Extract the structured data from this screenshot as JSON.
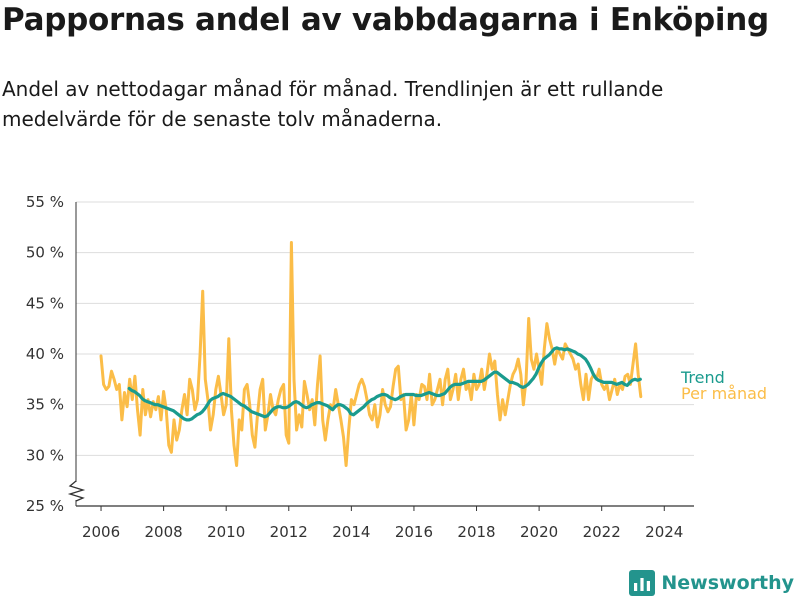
{
  "title": "Pappornas andel av vabbdagarna i Enköping",
  "subtitle": "Andel av nettodagar månad för månad. Trendlinjen är ett rullande medelvärde för de senaste tolv månaderna.",
  "brand": {
    "name": "Newsworthy",
    "color": "#23948d"
  },
  "colors": {
    "monthly": "#FBBD48",
    "trend": "#1A9B8E",
    "grid": "#dddddd",
    "axis": "#333333"
  },
  "chart_data": {
    "type": "line",
    "title": "Pappornas andel av vabbdagarna i Enköping",
    "ylabel": "",
    "xlabel": "",
    "ylim": [
      25,
      55
    ],
    "xlim": [
      2005.2,
      2024.95
    ],
    "y_axis_break": true,
    "yticks": [
      25,
      30,
      35,
      40,
      45,
      50,
      55
    ],
    "ytick_labels": [
      "25 %",
      "30 %",
      "35 %",
      "40 %",
      "45 %",
      "50 %",
      "55 %"
    ],
    "xticks": [
      2006,
      2008,
      2010,
      2012,
      2014,
      2016,
      2018,
      2020,
      2022,
      2024
    ],
    "xtick_labels": [
      "2006",
      "2008",
      "2010",
      "2012",
      "2014",
      "2016",
      "2018",
      "2020",
      "2022",
      "2024"
    ],
    "grid": "horizontal",
    "series": [
      {
        "name": "Per månad",
        "color": "#FBBD48",
        "x_start": 2006.0,
        "x_step": 0.08333,
        "values": [
          39.8,
          37.0,
          36.5,
          36.8,
          38.3,
          37.5,
          36.5,
          37.0,
          33.5,
          36.2,
          34.8,
          37.5,
          35.5,
          37.8,
          34.5,
          32.0,
          36.5,
          34.0,
          35.5,
          33.8,
          35.3,
          34.5,
          35.8,
          33.5,
          36.3,
          34.5,
          31.0,
          30.3,
          33.5,
          31.5,
          32.5,
          34.5,
          36.0,
          34.0,
          37.5,
          36.5,
          34.5,
          35.5,
          40.0,
          46.2,
          37.5,
          35.5,
          32.5,
          34.0,
          36.5,
          37.8,
          36.0,
          34.0,
          35.0,
          41.5,
          34.5,
          31.0,
          29.0,
          33.5,
          32.5,
          36.5,
          37.0,
          35.0,
          32.0,
          30.8,
          34.0,
          36.5,
          37.5,
          32.5,
          34.0,
          36.0,
          34.5,
          34.0,
          35.5,
          36.5,
          37.0,
          32.0,
          31.2,
          51.0,
          37.5,
          32.5,
          34.0,
          32.8,
          37.3,
          36.0,
          34.5,
          35.5,
          33.0,
          37.0,
          39.8,
          33.5,
          31.5,
          33.5,
          35.0,
          34.5,
          36.5,
          35.0,
          33.5,
          31.8,
          29.0,
          32.5,
          35.5,
          35.0,
          36.0,
          37.0,
          37.5,
          36.8,
          35.5,
          34.0,
          33.5,
          35.0,
          32.8,
          34.0,
          36.5,
          35.0,
          34.3,
          34.8,
          36.8,
          38.5,
          38.8,
          35.5,
          36.0,
          32.5,
          33.5,
          36.0,
          33.0,
          36.0,
          35.5,
          37.0,
          36.8,
          35.5,
          38.0,
          35.0,
          35.5,
          36.5,
          37.5,
          35.0,
          37.5,
          38.5,
          35.5,
          36.5,
          38.0,
          35.5,
          37.5,
          38.5,
          36.5,
          37.0,
          35.5,
          38.0,
          36.5,
          37.0,
          38.5,
          36.5,
          38.0,
          40.0,
          38.5,
          39.3,
          36.0,
          33.5,
          35.5,
          34.0,
          35.5,
          37.0,
          38.0,
          38.5,
          39.5,
          38.0,
          35.0,
          37.5,
          43.5,
          39.5,
          38.5,
          40.0,
          38.5,
          37.0,
          40.5,
          43.0,
          41.5,
          40.5,
          39.0,
          40.5,
          40.0,
          39.5,
          41.0,
          40.5,
          40.0,
          39.5,
          38.5,
          39.0,
          37.0,
          35.5,
          38.0,
          35.5,
          37.5,
          38.0,
          37.5,
          38.5,
          37.0,
          36.5,
          37.0,
          35.5,
          36.5,
          37.5,
          36.0,
          37.0,
          36.5,
          37.8,
          38.0,
          37.0,
          39.0,
          41.0,
          38.0,
          35.8
        ]
      },
      {
        "name": "Trend",
        "color": "#1A9B8E",
        "x_start": 2006.9,
        "x_step": 0.08333,
        "values": [
          36.6,
          36.4,
          36.3,
          36.1,
          35.9,
          35.6,
          35.4,
          35.3,
          35.2,
          35.1,
          35.0,
          35.0,
          34.9,
          34.8,
          34.7,
          34.6,
          34.5,
          34.4,
          34.2,
          34.0,
          33.8,
          33.6,
          33.5,
          33.5,
          33.6,
          33.8,
          34.0,
          34.1,
          34.3,
          34.6,
          35.0,
          35.4,
          35.6,
          35.7,
          35.8,
          36.0,
          36.1,
          36.0,
          35.9,
          35.8,
          35.6,
          35.4,
          35.2,
          35.0,
          34.9,
          34.7,
          34.5,
          34.3,
          34.2,
          34.1,
          34.0,
          33.9,
          33.8,
          33.9,
          34.2,
          34.5,
          34.7,
          34.8,
          34.8,
          34.7,
          34.7,
          34.8,
          35.0,
          35.2,
          35.3,
          35.2,
          35.0,
          34.8,
          34.7,
          34.8,
          35.0,
          35.1,
          35.2,
          35.2,
          35.1,
          35.0,
          34.9,
          34.7,
          34.5,
          34.8,
          35.0,
          35.0,
          34.9,
          34.7,
          34.5,
          34.1,
          34.0,
          34.2,
          34.4,
          34.6,
          34.8,
          35.1,
          35.3,
          35.5,
          35.6,
          35.8,
          35.9,
          36.0,
          36.0,
          35.9,
          35.7,
          35.6,
          35.5,
          35.6,
          35.8,
          35.9,
          36.0,
          36.0,
          36.0,
          36.0,
          35.9,
          35.9,
          35.9,
          36.0,
          36.1,
          36.2,
          36.1,
          36.0,
          35.9,
          35.9,
          36.0,
          36.1,
          36.4,
          36.7,
          36.9,
          37.0,
          37.0,
          37.0,
          37.1,
          37.2,
          37.3,
          37.3,
          37.3,
          37.3,
          37.3,
          37.3,
          37.4,
          37.6,
          37.8,
          38.0,
          38.2,
          38.2,
          38.0,
          37.8,
          37.6,
          37.4,
          37.2,
          37.2,
          37.1,
          37.0,
          36.8,
          36.7,
          36.8,
          37.0,
          37.3,
          37.6,
          38.0,
          38.6,
          39.1,
          39.5,
          39.7,
          39.9,
          40.2,
          40.5,
          40.6,
          40.5,
          40.5,
          40.4,
          40.5,
          40.4,
          40.3,
          40.2,
          40.0,
          39.9,
          39.7,
          39.5,
          39.1,
          38.6,
          38.0,
          37.6,
          37.4,
          37.3,
          37.2,
          37.2,
          37.2,
          37.2,
          37.1,
          37.0,
          37.1,
          37.2,
          37.0,
          36.9,
          37.2,
          37.4,
          37.5,
          37.4,
          37.5
        ]
      }
    ],
    "legend": [
      {
        "name": "Trend",
        "color": "#1A9B8E",
        "position": "right"
      },
      {
        "name": "Per månad",
        "color": "#FBBD48",
        "position": "right"
      }
    ]
  }
}
